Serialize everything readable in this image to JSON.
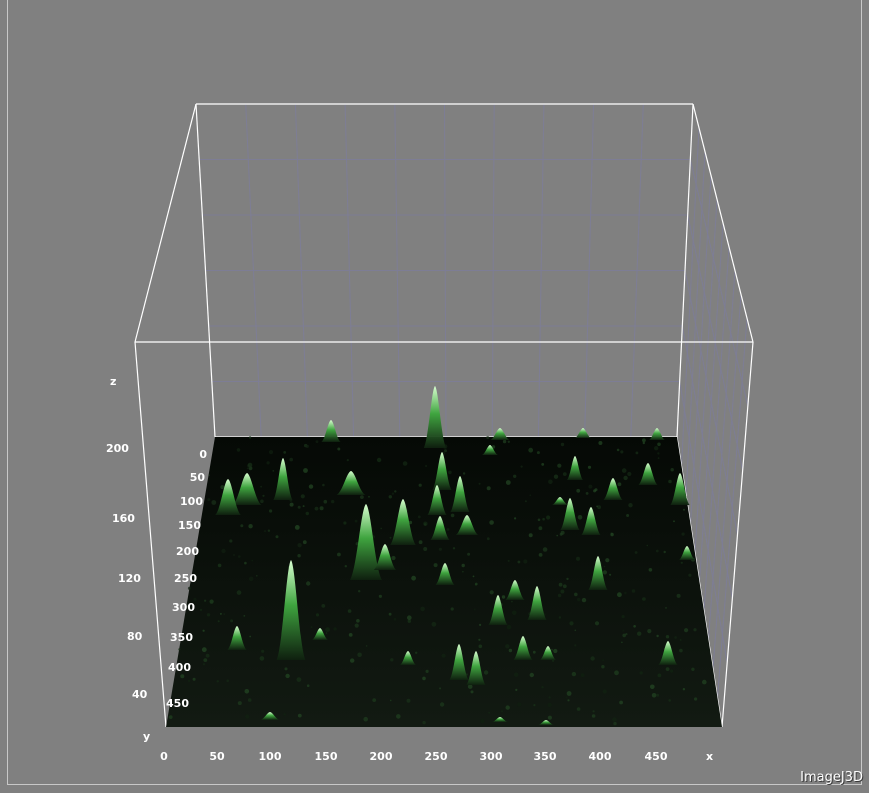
{
  "app": {
    "brand": "ImageJ3D"
  },
  "axes": {
    "x": {
      "label": "x",
      "ticks": [
        "0",
        "50",
        "100",
        "150",
        "200",
        "250",
        "300",
        "350",
        "400",
        "450"
      ]
    },
    "y": {
      "label": "y",
      "ticks": [
        "0",
        "50",
        "100",
        "150",
        "200",
        "250",
        "300",
        "350",
        "400",
        "450"
      ]
    },
    "z": {
      "label": "z",
      "ticks": [
        "40",
        "80",
        "120",
        "160",
        "200"
      ]
    }
  },
  "colors": {
    "background": "#808080",
    "box_lines": "#ffffff",
    "grid_lines": "#7d7d95",
    "surface": "#0a120a",
    "peak": "#5cff5c"
  }
}
